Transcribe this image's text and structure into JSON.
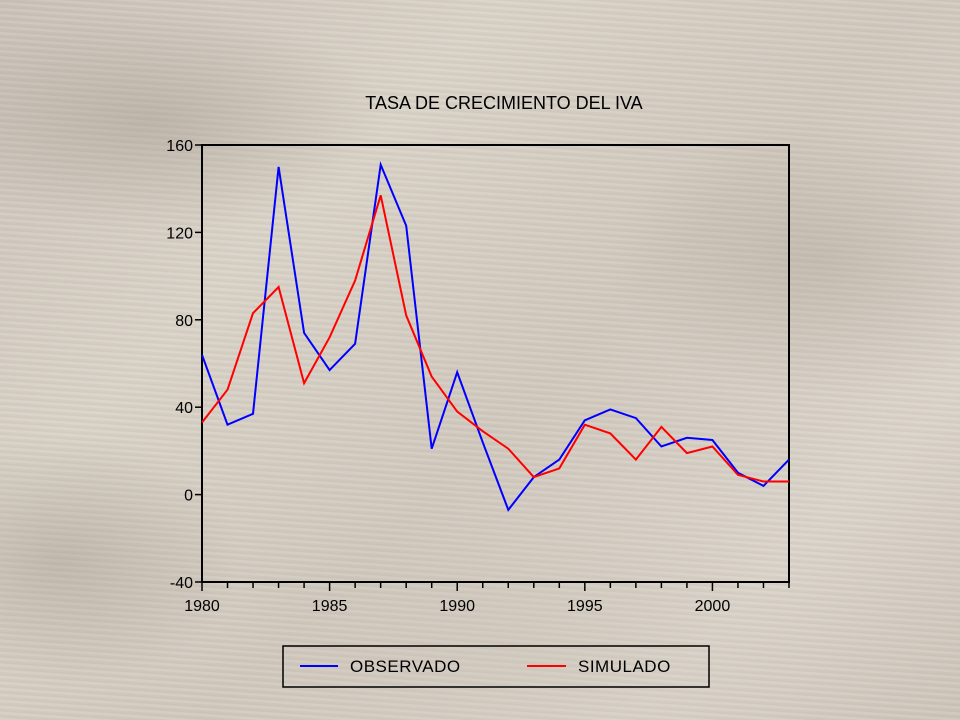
{
  "chart_data": {
    "type": "line",
    "title": "TASA DE CRECIMIENTO DEL IVA",
    "xlabel": "",
    "ylabel": "",
    "xlim": [
      1980,
      2003
    ],
    "ylim": [
      -40,
      160
    ],
    "x_ticks": [
      1980,
      1985,
      1990,
      1995,
      2000
    ],
    "x_tick_labels": [
      "1980",
      "1985",
      "1990",
      "1995",
      "2000"
    ],
    "y_ticks": [
      -40,
      0,
      40,
      80,
      120,
      160
    ],
    "y_tick_labels": [
      "-40",
      "0",
      "40",
      "80",
      "120",
      "160"
    ],
    "x": [
      1980,
      1981,
      1982,
      1983,
      1984,
      1985,
      1986,
      1987,
      1988,
      1989,
      1990,
      1991,
      1992,
      1993,
      1994,
      1995,
      1996,
      1997,
      1998,
      1999,
      2000,
      2001,
      2002,
      2003
    ],
    "series": [
      {
        "name": "OBSERVADO",
        "color": "#0000ff",
        "values": [
          64,
          32,
          37,
          150,
          74,
          57,
          69,
          151,
          123,
          21,
          56,
          24,
          -7,
          8,
          16,
          34,
          39,
          35,
          22,
          26,
          25,
          10,
          4,
          16
        ]
      },
      {
        "name": "SIMULADO",
        "color": "#ff0000",
        "values": [
          33,
          48,
          83,
          95,
          51,
          72,
          98,
          137,
          82,
          54,
          38,
          29,
          21,
          8,
          12,
          32,
          28,
          16,
          31,
          19,
          22,
          9,
          6,
          6
        ]
      }
    ],
    "grid": false,
    "legend_position": "bottom"
  }
}
